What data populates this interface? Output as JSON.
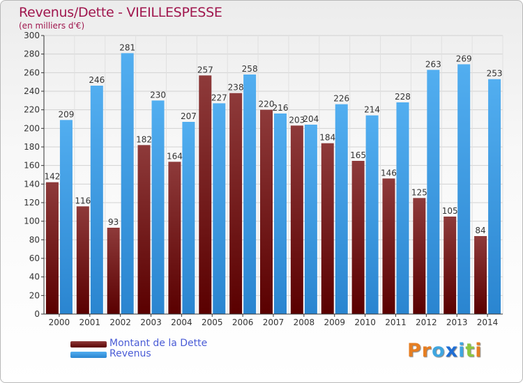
{
  "title": "Revenus/Dette - VIEILLESPESSE",
  "subtitle": "(en milliers d'€)",
  "logo": {
    "letters": [
      "P",
      "r",
      "o",
      "x",
      "i",
      "t",
      "i"
    ],
    "colors": [
      "#e67e22",
      "#e67e22",
      "#3fa6e0",
      "#1f6ed4",
      "#3fa6e0",
      "#8dc63f",
      "#e67e22"
    ]
  },
  "legend": [
    {
      "label": "Montant de la Dette",
      "color": "#7a1a1a"
    },
    {
      "label": "Revenus",
      "color": "#3d9be9"
    }
  ],
  "chart_data": {
    "type": "bar",
    "categories": [
      "2000",
      "2001",
      "2002",
      "2003",
      "2004",
      "2005",
      "2006",
      "2007",
      "2008",
      "2009",
      "2010",
      "2011",
      "2012",
      "2013",
      "2014"
    ],
    "series": [
      {
        "name": "Montant de la Dette",
        "color": "#7a1a1a",
        "values": [
          142,
          116,
          93,
          182,
          164,
          257,
          238,
          220,
          203,
          184,
          165,
          146,
          125,
          105,
          84
        ]
      },
      {
        "name": "Revenus",
        "color": "#3d9be9",
        "values": [
          209,
          246,
          281,
          230,
          207,
          227,
          258,
          216,
          204,
          226,
          214,
          228,
          263,
          269,
          253
        ]
      }
    ],
    "yticks": [
      0,
      20,
      40,
      60,
      80,
      100,
      120,
      140,
      160,
      180,
      200,
      220,
      240,
      260,
      280,
      300
    ],
    "ylim": [
      0,
      300
    ],
    "grid": true,
    "legend_position": "bottom-left"
  }
}
